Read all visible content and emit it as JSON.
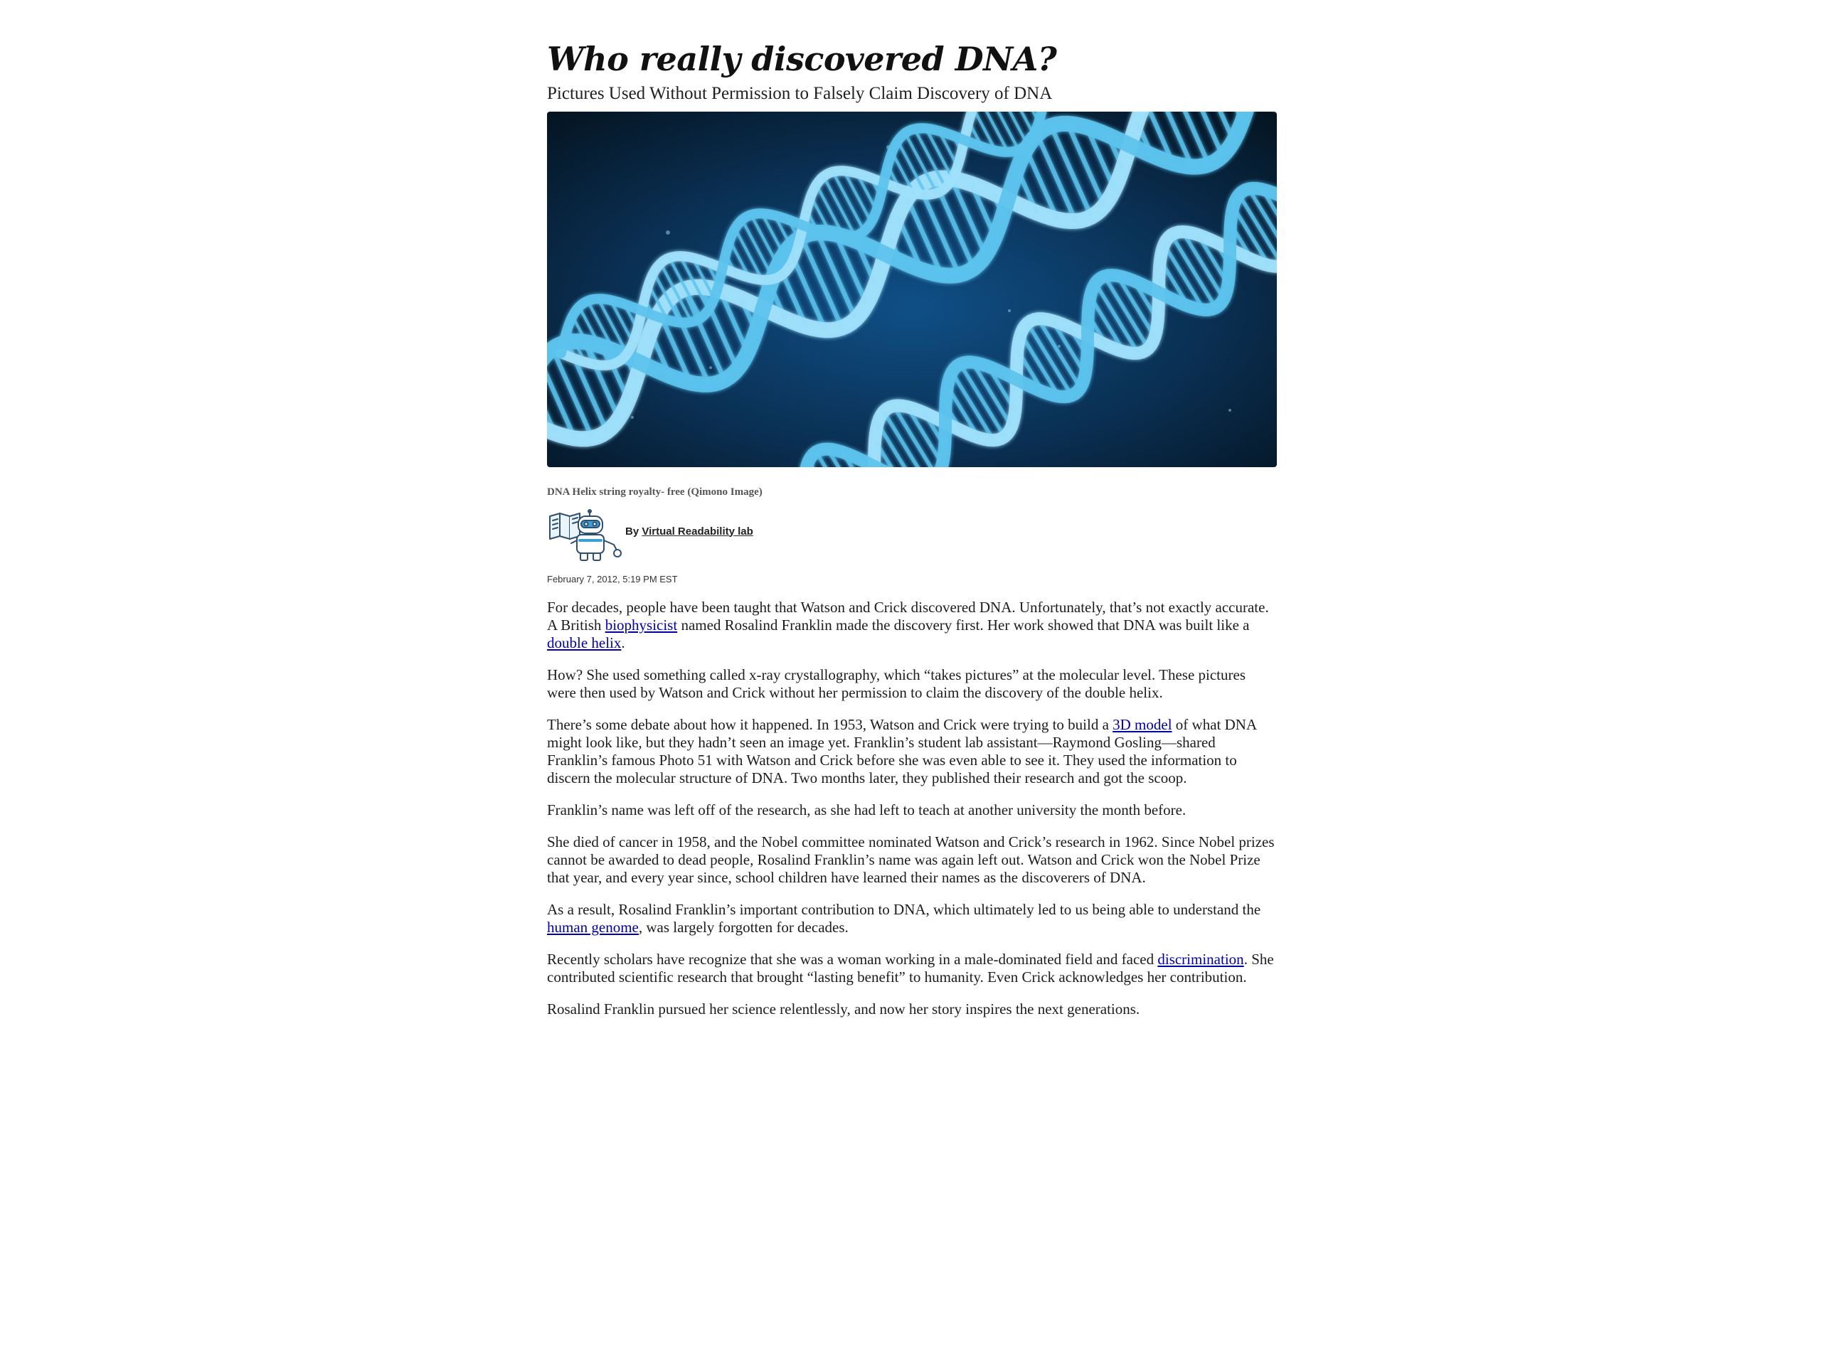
{
  "article": {
    "headline": "Who really discovered DNA?",
    "subhead": "Pictures Used Without Permission to Falsely Claim Discovery of DNA",
    "hero_image": {
      "icon": "dna-helix-image",
      "colors": {
        "background_center": "#0f4f86",
        "background_edge": "#04131f",
        "helix": "#5cc3ee",
        "helix_light": "#9fe1fb"
      }
    },
    "caption": "DNA Helix string royalty- free (Qimono Image)",
    "byline": {
      "prefix": "By",
      "author": "Virtual Readability lab",
      "logo_icon": "robot-reading-book-icon"
    },
    "date": "February 7, 2012, 5:19 PM EST"
  },
  "body": {
    "p1": {
      "a": "For decades, people have been taught that Watson and Crick discovered DNA. Unfortunately, that’s not exactly accurate. A British ",
      "link1": "biophysicist",
      "b": " named Rosalind Franklin made the discovery first. Her work showed that DNA was built like a ",
      "link2": "double helix",
      "c": "."
    },
    "p2": "How? She used something called x-ray crystallography, which “takes pictures” at the molecular level. These pictures were then used by Watson and Crick without her permission to claim the discovery of the double helix.",
    "p3": {
      "a": "There’s some debate about how it happened. In 1953, Watson and Crick were trying to build a ",
      "link": "3D model",
      "b": " of what DNA might look like, but they hadn’t seen an image yet. Franklin’s student lab assistant—Raymond Gosling—shared Franklin’s famous Photo 51 with Watson and Crick before she was even able to see it. They used the information to discern the molecular structure of DNA. Two months later, they published their research and got the scoop."
    },
    "p4": "Franklin’s name was left off of the research, as she had left to teach at another university the month before.",
    "p5": "She died of cancer in 1958, and the Nobel committee nominated Watson and Crick’s research in 1962. Since Nobel prizes cannot be awarded to dead people, Rosalind Franklin’s name was again left out. Watson and Crick won the Nobel Prize that year, and every year since, school children have learned their names as the discoverers of DNA.",
    "p6": {
      "a": "As a result, Rosalind Franklin’s important contribution to DNA, which ultimately led to us being able to understand the ",
      "link": "human genome",
      "b": ", was largely forgotten for decades."
    },
    "p7": {
      "a": "Recently scholars have recognize that she was a woman working in a male-dominated field and faced ",
      "link": "discrimination",
      "b": ". She contributed scientific research that brought “lasting benefit” to humanity. Even Crick acknowledges her contribution."
    },
    "p8": "Rosalind Franklin pursued her science relentlessly, and now her story inspires the next generations."
  }
}
